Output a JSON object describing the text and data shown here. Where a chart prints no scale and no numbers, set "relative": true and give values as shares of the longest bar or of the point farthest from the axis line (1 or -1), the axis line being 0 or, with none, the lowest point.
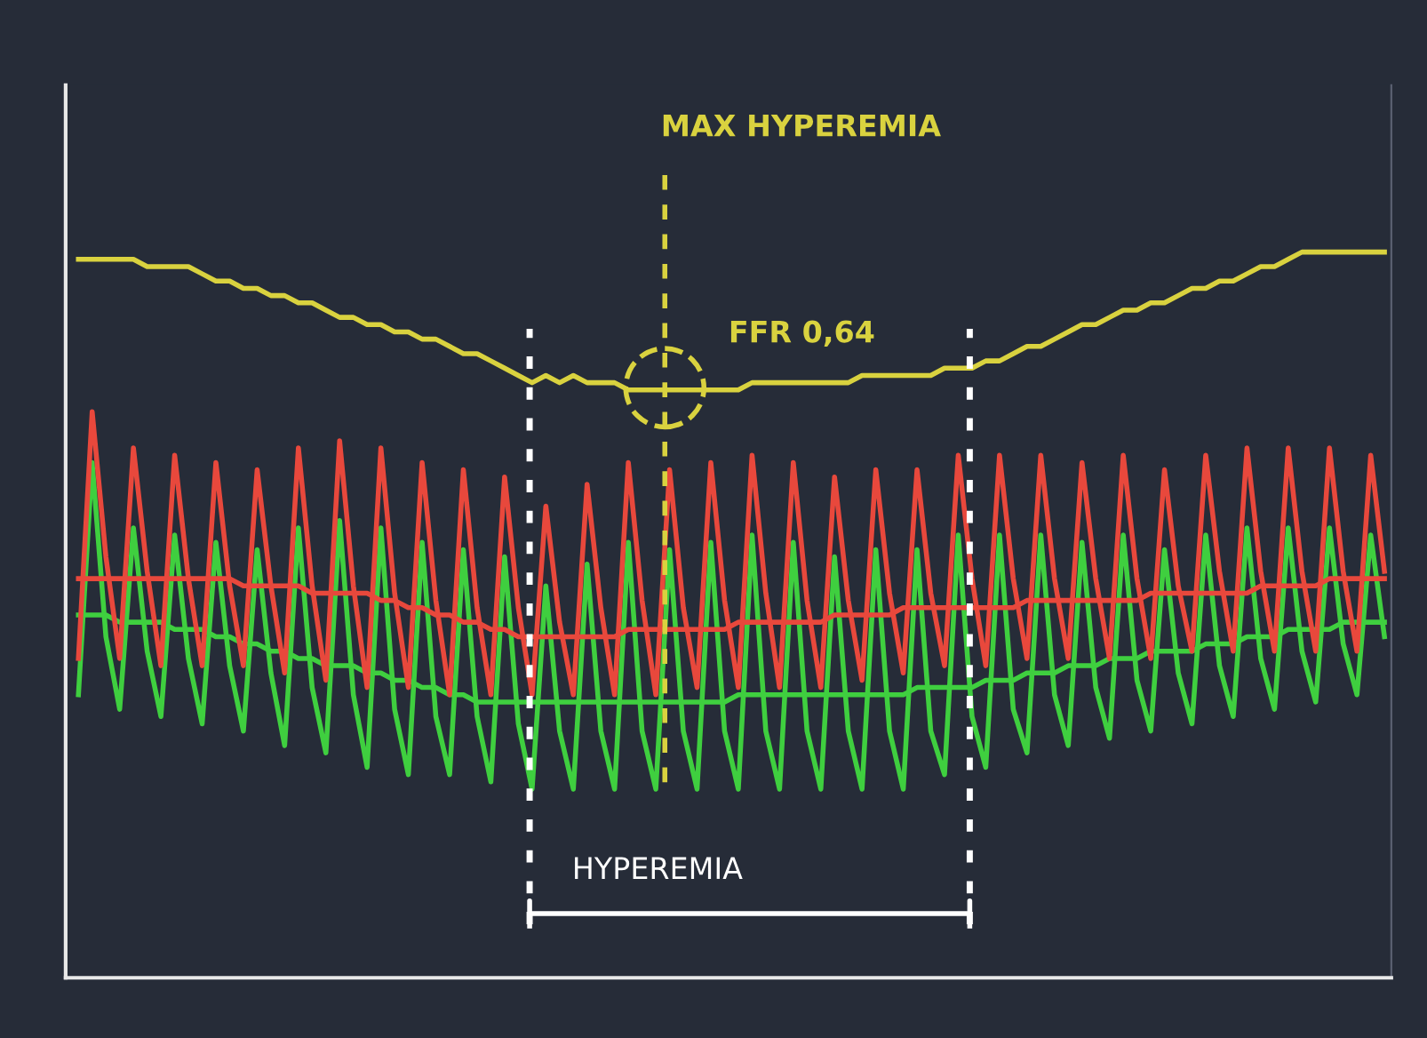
{
  "chart_data": {
    "type": "line",
    "relative": true,
    "marker": "none",
    "line_style": "solid",
    "categories": [
      null,
      null,
      null,
      null,
      null,
      null,
      null,
      null,
      null,
      null,
      null,
      null,
      null,
      null,
      null,
      null,
      null,
      null,
      null,
      null,
      null,
      null,
      null,
      null,
      null,
      null,
      null,
      null,
      null,
      null,
      null,
      null,
      null,
      null,
      null,
      null,
      null,
      null,
      null,
      null,
      null,
      null,
      null,
      null,
      null,
      null,
      null,
      null,
      null,
      null,
      null,
      null,
      null,
      null,
      null,
      null,
      null,
      null,
      null,
      null,
      null,
      null,
      null,
      null,
      null,
      null,
      null,
      null,
      null,
      null,
      null,
      null,
      null,
      null,
      null,
      null,
      null,
      null,
      null,
      null,
      null,
      null,
      null,
      null,
      null,
      null,
      null,
      null,
      null,
      null,
      null,
      null,
      null,
      null,
      null,
      null
    ],
    "series": [
      {
        "color": "#3fcf3f",
        "values": [
          0.39,
          0.71,
          0.47,
          0.37,
          0.62,
          0.45,
          0.36,
          0.61,
          0.44,
          0.35,
          0.6,
          0.43,
          0.34,
          0.59,
          0.42,
          0.32,
          0.62,
          0.4,
          0.31,
          0.63,
          0.39,
          0.29,
          0.62,
          0.37,
          0.28,
          0.6,
          0.36,
          0.28,
          0.59,
          0.36,
          0.27,
          0.58,
          0.35,
          0.26,
          0.54,
          0.34,
          0.26,
          0.57,
          0.34,
          0.26,
          0.6,
          0.34,
          0.26,
          0.59,
          0.34,
          0.26,
          0.6,
          0.34,
          0.26,
          0.61,
          0.34,
          0.26,
          0.6,
          0.34,
          0.26,
          0.58,
          0.34,
          0.26,
          0.59,
          0.34,
          0.26,
          0.59,
          0.34,
          0.28,
          0.61,
          0.36,
          0.29,
          0.61,
          0.37,
          0.31,
          0.61,
          0.39,
          0.32,
          0.6,
          0.4,
          0.33,
          0.61,
          0.41,
          0.34,
          0.59,
          0.42,
          0.35,
          0.61,
          0.43,
          0.36,
          0.62,
          0.44,
          0.37,
          0.62,
          0.45,
          0.38,
          0.62,
          0.46,
          0.39,
          0.61,
          0.47
        ]
      },
      {
        "color": "#3fcf3f",
        "values": [
          0.5,
          0.5,
          0.5,
          0.49,
          0.49,
          0.49,
          0.49,
          0.48,
          0.48,
          0.48,
          0.47,
          0.47,
          0.46,
          0.46,
          0.45,
          0.45,
          0.44,
          0.44,
          0.43,
          0.43,
          0.43,
          0.42,
          0.42,
          0.41,
          0.41,
          0.4,
          0.4,
          0.39,
          0.39,
          0.38,
          0.38,
          0.38,
          0.38,
          0.38,
          0.38,
          0.38,
          0.38,
          0.38,
          0.38,
          0.38,
          0.38,
          0.38,
          0.38,
          0.38,
          0.38,
          0.38,
          0.38,
          0.38,
          0.39,
          0.39,
          0.39,
          0.39,
          0.39,
          0.39,
          0.39,
          0.39,
          0.39,
          0.39,
          0.39,
          0.39,
          0.39,
          0.4,
          0.4,
          0.4,
          0.4,
          0.4,
          0.41,
          0.41,
          0.41,
          0.42,
          0.42,
          0.42,
          0.43,
          0.43,
          0.43,
          0.44,
          0.44,
          0.44,
          0.45,
          0.45,
          0.45,
          0.45,
          0.46,
          0.46,
          0.46,
          0.47,
          0.47,
          0.47,
          0.48,
          0.48,
          0.48,
          0.48,
          0.49,
          0.49,
          0.49,
          0.49
        ]
      },
      {
        "color": "#e8483c",
        "values": [
          0.44,
          0.78,
          0.58,
          0.44,
          0.73,
          0.56,
          0.43,
          0.72,
          0.55,
          0.43,
          0.71,
          0.54,
          0.43,
          0.7,
          0.54,
          0.42,
          0.73,
          0.54,
          0.41,
          0.74,
          0.54,
          0.4,
          0.73,
          0.53,
          0.4,
          0.71,
          0.52,
          0.39,
          0.7,
          0.51,
          0.39,
          0.69,
          0.51,
          0.39,
          0.65,
          0.49,
          0.39,
          0.68,
          0.51,
          0.39,
          0.71,
          0.52,
          0.39,
          0.7,
          0.51,
          0.4,
          0.71,
          0.52,
          0.4,
          0.72,
          0.53,
          0.4,
          0.71,
          0.52,
          0.4,
          0.69,
          0.52,
          0.41,
          0.7,
          0.53,
          0.42,
          0.7,
          0.53,
          0.43,
          0.72,
          0.55,
          0.43,
          0.72,
          0.55,
          0.44,
          0.72,
          0.55,
          0.44,
          0.71,
          0.55,
          0.44,
          0.72,
          0.55,
          0.44,
          0.7,
          0.54,
          0.45,
          0.72,
          0.56,
          0.45,
          0.73,
          0.56,
          0.45,
          0.73,
          0.56,
          0.45,
          0.73,
          0.56,
          0.45,
          0.72,
          0.56
        ]
      },
      {
        "color": "#e8483c",
        "values": [
          0.55,
          0.55,
          0.55,
          0.55,
          0.55,
          0.55,
          0.55,
          0.55,
          0.55,
          0.55,
          0.55,
          0.55,
          0.54,
          0.54,
          0.54,
          0.54,
          0.54,
          0.53,
          0.53,
          0.53,
          0.53,
          0.53,
          0.52,
          0.52,
          0.51,
          0.51,
          0.5,
          0.5,
          0.49,
          0.49,
          0.48,
          0.48,
          0.47,
          0.47,
          0.47,
          0.47,
          0.47,
          0.47,
          0.47,
          0.47,
          0.48,
          0.48,
          0.48,
          0.48,
          0.48,
          0.48,
          0.48,
          0.48,
          0.49,
          0.49,
          0.49,
          0.49,
          0.49,
          0.49,
          0.49,
          0.5,
          0.5,
          0.5,
          0.5,
          0.5,
          0.51,
          0.51,
          0.51,
          0.51,
          0.51,
          0.51,
          0.51,
          0.51,
          0.51,
          0.52,
          0.52,
          0.52,
          0.52,
          0.52,
          0.52,
          0.52,
          0.52,
          0.52,
          0.53,
          0.53,
          0.53,
          0.53,
          0.53,
          0.53,
          0.53,
          0.53,
          0.54,
          0.54,
          0.54,
          0.54,
          0.54,
          0.55,
          0.55,
          0.55,
          0.55,
          0.55
        ]
      },
      {
        "color": "#d9d23f",
        "values": [
          0.99,
          0.99,
          0.99,
          0.99,
          0.99,
          0.98,
          0.98,
          0.98,
          0.98,
          0.97,
          0.96,
          0.96,
          0.95,
          0.95,
          0.94,
          0.94,
          0.93,
          0.93,
          0.92,
          0.91,
          0.91,
          0.9,
          0.9,
          0.89,
          0.89,
          0.88,
          0.88,
          0.87,
          0.86,
          0.86,
          0.85,
          0.84,
          0.83,
          0.82,
          0.83,
          0.82,
          0.83,
          0.82,
          0.82,
          0.82,
          0.81,
          0.81,
          0.81,
          0.81,
          0.81,
          0.81,
          0.81,
          0.81,
          0.81,
          0.82,
          0.82,
          0.82,
          0.82,
          0.82,
          0.82,
          0.82,
          0.82,
          0.83,
          0.83,
          0.83,
          0.83,
          0.83,
          0.83,
          0.84,
          0.84,
          0.84,
          0.85,
          0.85,
          0.86,
          0.87,
          0.87,
          0.88,
          0.89,
          0.9,
          0.9,
          0.91,
          0.92,
          0.92,
          0.93,
          0.93,
          0.94,
          0.95,
          0.95,
          0.96,
          0.96,
          0.97,
          0.98,
          0.98,
          0.99,
          1.0,
          1.0,
          1.0,
          1.0,
          1.0,
          1.0,
          1.0
        ]
      }
    ],
    "annotations": [
      "MAX HYPEREMIA",
      "FFR 0,64",
      "HYPEREMIA"
    ]
  }
}
